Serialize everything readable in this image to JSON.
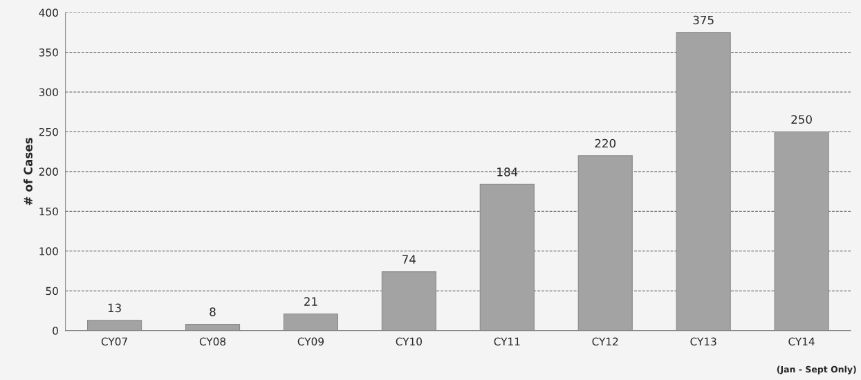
{
  "chart_data": {
    "type": "bar",
    "ylabel": "# of Cases",
    "categories": [
      "CY07",
      "CY08",
      "CY09",
      "CY10",
      "CY11",
      "CY12",
      "CY13",
      "CY14"
    ],
    "values": [
      13,
      8,
      21,
      74,
      184,
      220,
      375,
      250
    ],
    "color": "#a3a3a3",
    "ylim": [
      0,
      400
    ],
    "yticks": [
      0,
      50,
      100,
      150,
      200,
      250,
      300,
      350,
      400
    ],
    "grid": "y",
    "data_labels": true,
    "annotations": [
      "(Jan - Sept Only)"
    ]
  }
}
